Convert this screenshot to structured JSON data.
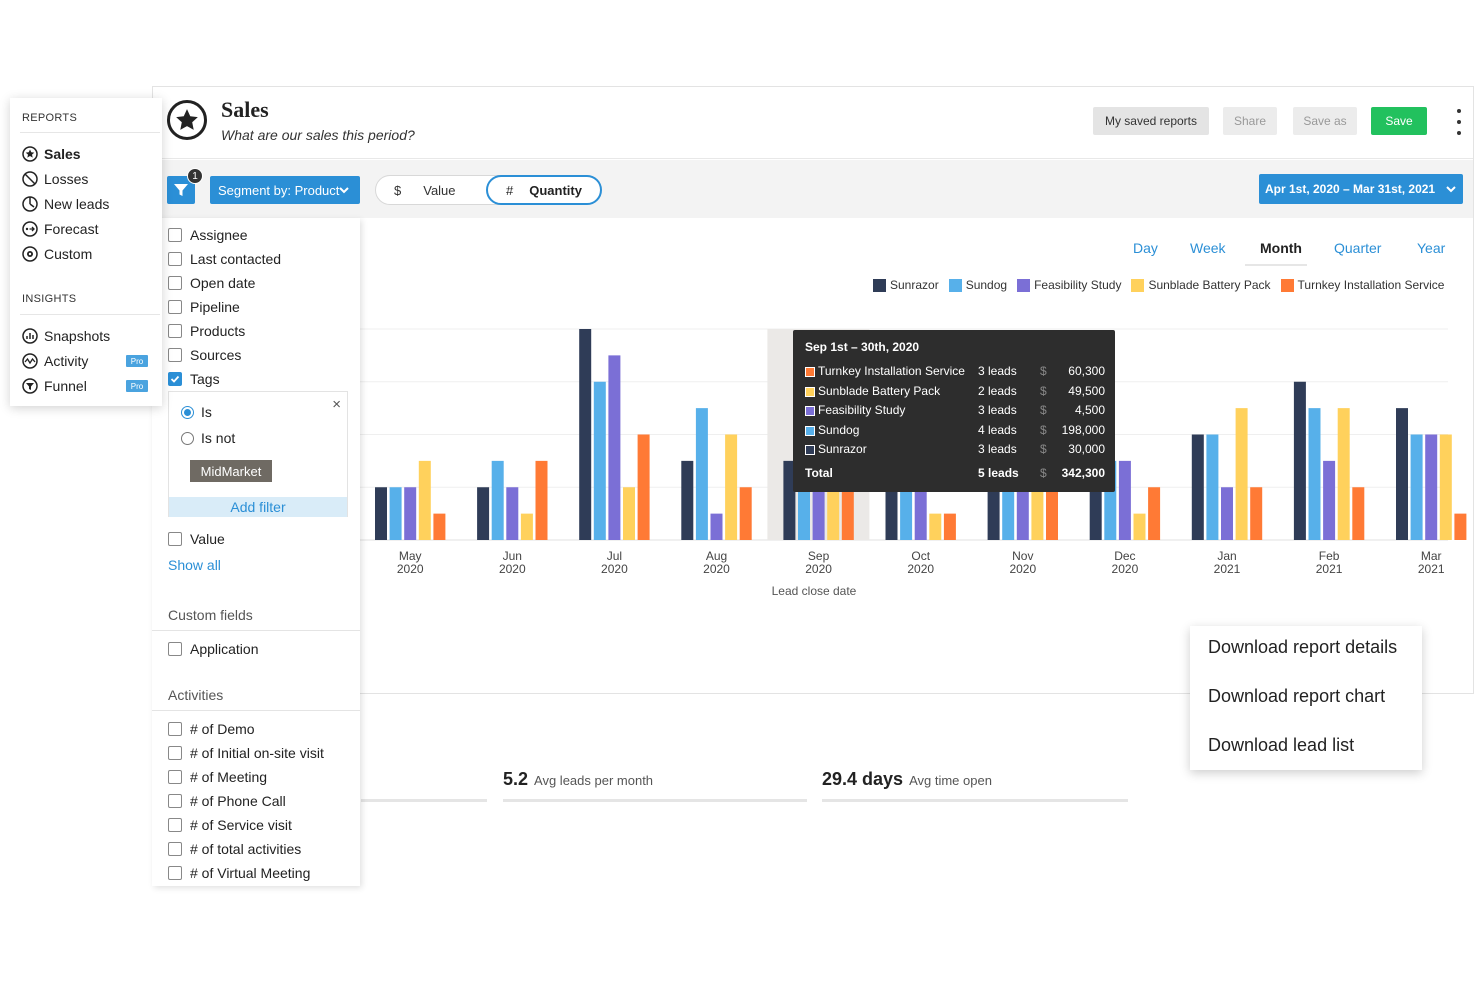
{
  "header": {
    "title": "Sales",
    "subtitle": "What are our sales this period?",
    "saved_reports": "My saved reports",
    "share": "Share",
    "save_as": "Save as",
    "save": "Save"
  },
  "toolbar": {
    "filter_count": "1",
    "segment": "Segment by: Product",
    "value_symbol": "$",
    "value_label": "Value",
    "quantity_symbol": "#",
    "quantity_label": "Quantity",
    "date_range": "Apr 1st, 2020 – Mar 31st, 2021"
  },
  "periods": [
    "Day",
    "Week",
    "Month",
    "Quarter",
    "Year"
  ],
  "active_period": "Month",
  "sidebar": {
    "reports_heading": "REPORTS",
    "reports": [
      {
        "label": "Sales",
        "icon": "star-icon"
      },
      {
        "label": "Losses",
        "icon": "ban-icon"
      },
      {
        "label": "New leads",
        "icon": "clock-icon"
      },
      {
        "label": "Forecast",
        "icon": "forecast-icon"
      },
      {
        "label": "Custom",
        "icon": "gear-icon"
      }
    ],
    "insights_heading": "INSIGHTS",
    "insights": [
      {
        "label": "Snapshots",
        "icon": "snapshot-icon",
        "pro": ""
      },
      {
        "label": "Activity",
        "icon": "activity-icon",
        "pro": "Pro"
      },
      {
        "label": "Funnel",
        "icon": "funnel-icon",
        "pro": "Pro"
      }
    ]
  },
  "filters": {
    "fields": [
      "Assignee",
      "Last contacted",
      "Open date",
      "Pipeline",
      "Products",
      "Sources",
      "Tags"
    ],
    "tag_is": "Is",
    "tag_is_not": "Is not",
    "tag_chip": "MidMarket",
    "add_filter": "Add filter",
    "value_field": "Value",
    "show_all": "Show all",
    "custom_fields_heading": "Custom fields",
    "custom_fields": [
      "Application"
    ],
    "activities_heading": "Activities",
    "activities": [
      "# of Demo",
      "# of Initial on-site visit",
      "# of Meeting",
      "# of Phone Call",
      "# of Service visit",
      "# of total activities",
      "# of Virtual Meeting"
    ]
  },
  "stats": [
    {
      "value": "5.2",
      "label": "Avg leads per month"
    },
    {
      "value": "29.4 days",
      "label": "Avg time open"
    }
  ],
  "download_menu": [
    "Download report details",
    "Download report chart",
    "Download lead list"
  ],
  "tooltip": {
    "title": "Sep 1st – 30th, 2020",
    "rows": [
      {
        "name": "Turnkey Installation Service",
        "leads": "3 leads",
        "cur": "$",
        "amount": "60,300",
        "color": "#ff7a35"
      },
      {
        "name": "Sunblade Battery Pack",
        "leads": "2 leads",
        "cur": "$",
        "amount": "49,500",
        "color": "#ffd15c"
      },
      {
        "name": "Feasibility Study",
        "leads": "3 leads",
        "cur": "$",
        "amount": "4,500",
        "color": "#7b6fd6"
      },
      {
        "name": "Sundog",
        "leads": "4 leads",
        "cur": "$",
        "amount": "198,000",
        "color": "#57b0ea"
      },
      {
        "name": "Sunrazor",
        "leads": "3 leads",
        "cur": "$",
        "amount": "30,000",
        "color": "#2f3c57"
      }
    ],
    "total_label": "Total",
    "total_leads": "5 leads",
    "total_cur": "$",
    "total_amount": "342,300"
  },
  "chart_data": {
    "type": "bar",
    "xlabel": "Lead close date",
    "categories": [
      "May 2020",
      "Jun 2020",
      "Jul 2020",
      "Aug 2020",
      "Sep 2020",
      "Oct 2020",
      "Nov 2020",
      "Dec 2020",
      "Jan 2021",
      "Feb 2021",
      "Mar 2021"
    ],
    "ylim": [
      0,
      8
    ],
    "highlight_category": "Sep 2020",
    "legend_position": "top-right",
    "series": [
      {
        "name": "Sunrazor",
        "color": "#2f3c57",
        "values": [
          2,
          2,
          8,
          3,
          3,
          2,
          3,
          5,
          4,
          6,
          5
        ]
      },
      {
        "name": "Sundog",
        "color": "#57b0ea",
        "values": [
          2,
          3,
          6,
          5,
          4,
          2,
          4,
          3,
          4,
          5,
          4
        ]
      },
      {
        "name": "Feasibility Study",
        "color": "#7b6fd6",
        "values": [
          2,
          2,
          7,
          1,
          3,
          2,
          3,
          3,
          2,
          3,
          4
        ]
      },
      {
        "name": "Sunblade Battery Pack",
        "color": "#ffd15c",
        "values": [
          3,
          1,
          2,
          4,
          2,
          1,
          2,
          1,
          5,
          5,
          4
        ]
      },
      {
        "name": "Turnkey Installation Service",
        "color": "#ff7a35",
        "values": [
          1,
          3,
          4,
          2,
          3,
          1,
          3,
          2,
          2,
          2,
          1
        ]
      }
    ]
  }
}
